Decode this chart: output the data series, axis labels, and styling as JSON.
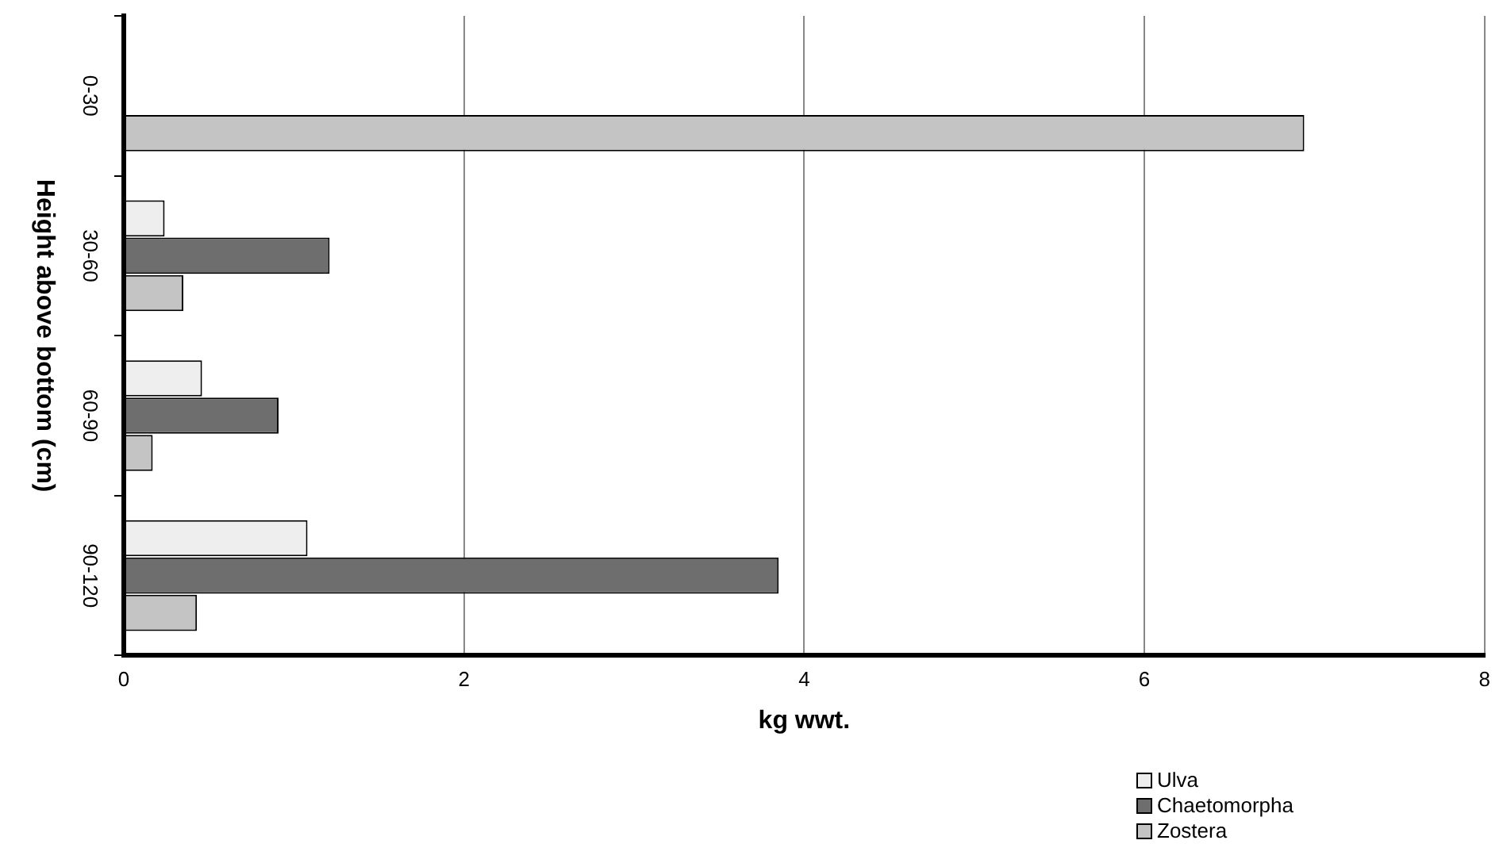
{
  "chart_data": {
    "type": "bar",
    "orientation": "horizontal",
    "xlabel": "kg wwt.",
    "ylabel": "Height above bottom (cm)",
    "categories": [
      "0-30",
      "30-60",
      "60-90",
      "90-120"
    ],
    "series": [
      {
        "name": "Ulva",
        "color": "#eeeeee",
        "values": [
          null,
          0.24,
          0.46,
          1.08
        ]
      },
      {
        "name": "Chaetomorpha",
        "color": "#6e6e6e",
        "values": [
          null,
          1.21,
          0.91,
          3.85
        ]
      },
      {
        "name": "Zostera",
        "color": "#c4c4c4",
        "values": [
          6.94,
          0.35,
          0.17,
          0.43
        ]
      }
    ],
    "xlim": [
      0,
      8
    ],
    "xticks": [
      0,
      2,
      4,
      6,
      8
    ],
    "grid": "x",
    "legend": "bottom right"
  }
}
